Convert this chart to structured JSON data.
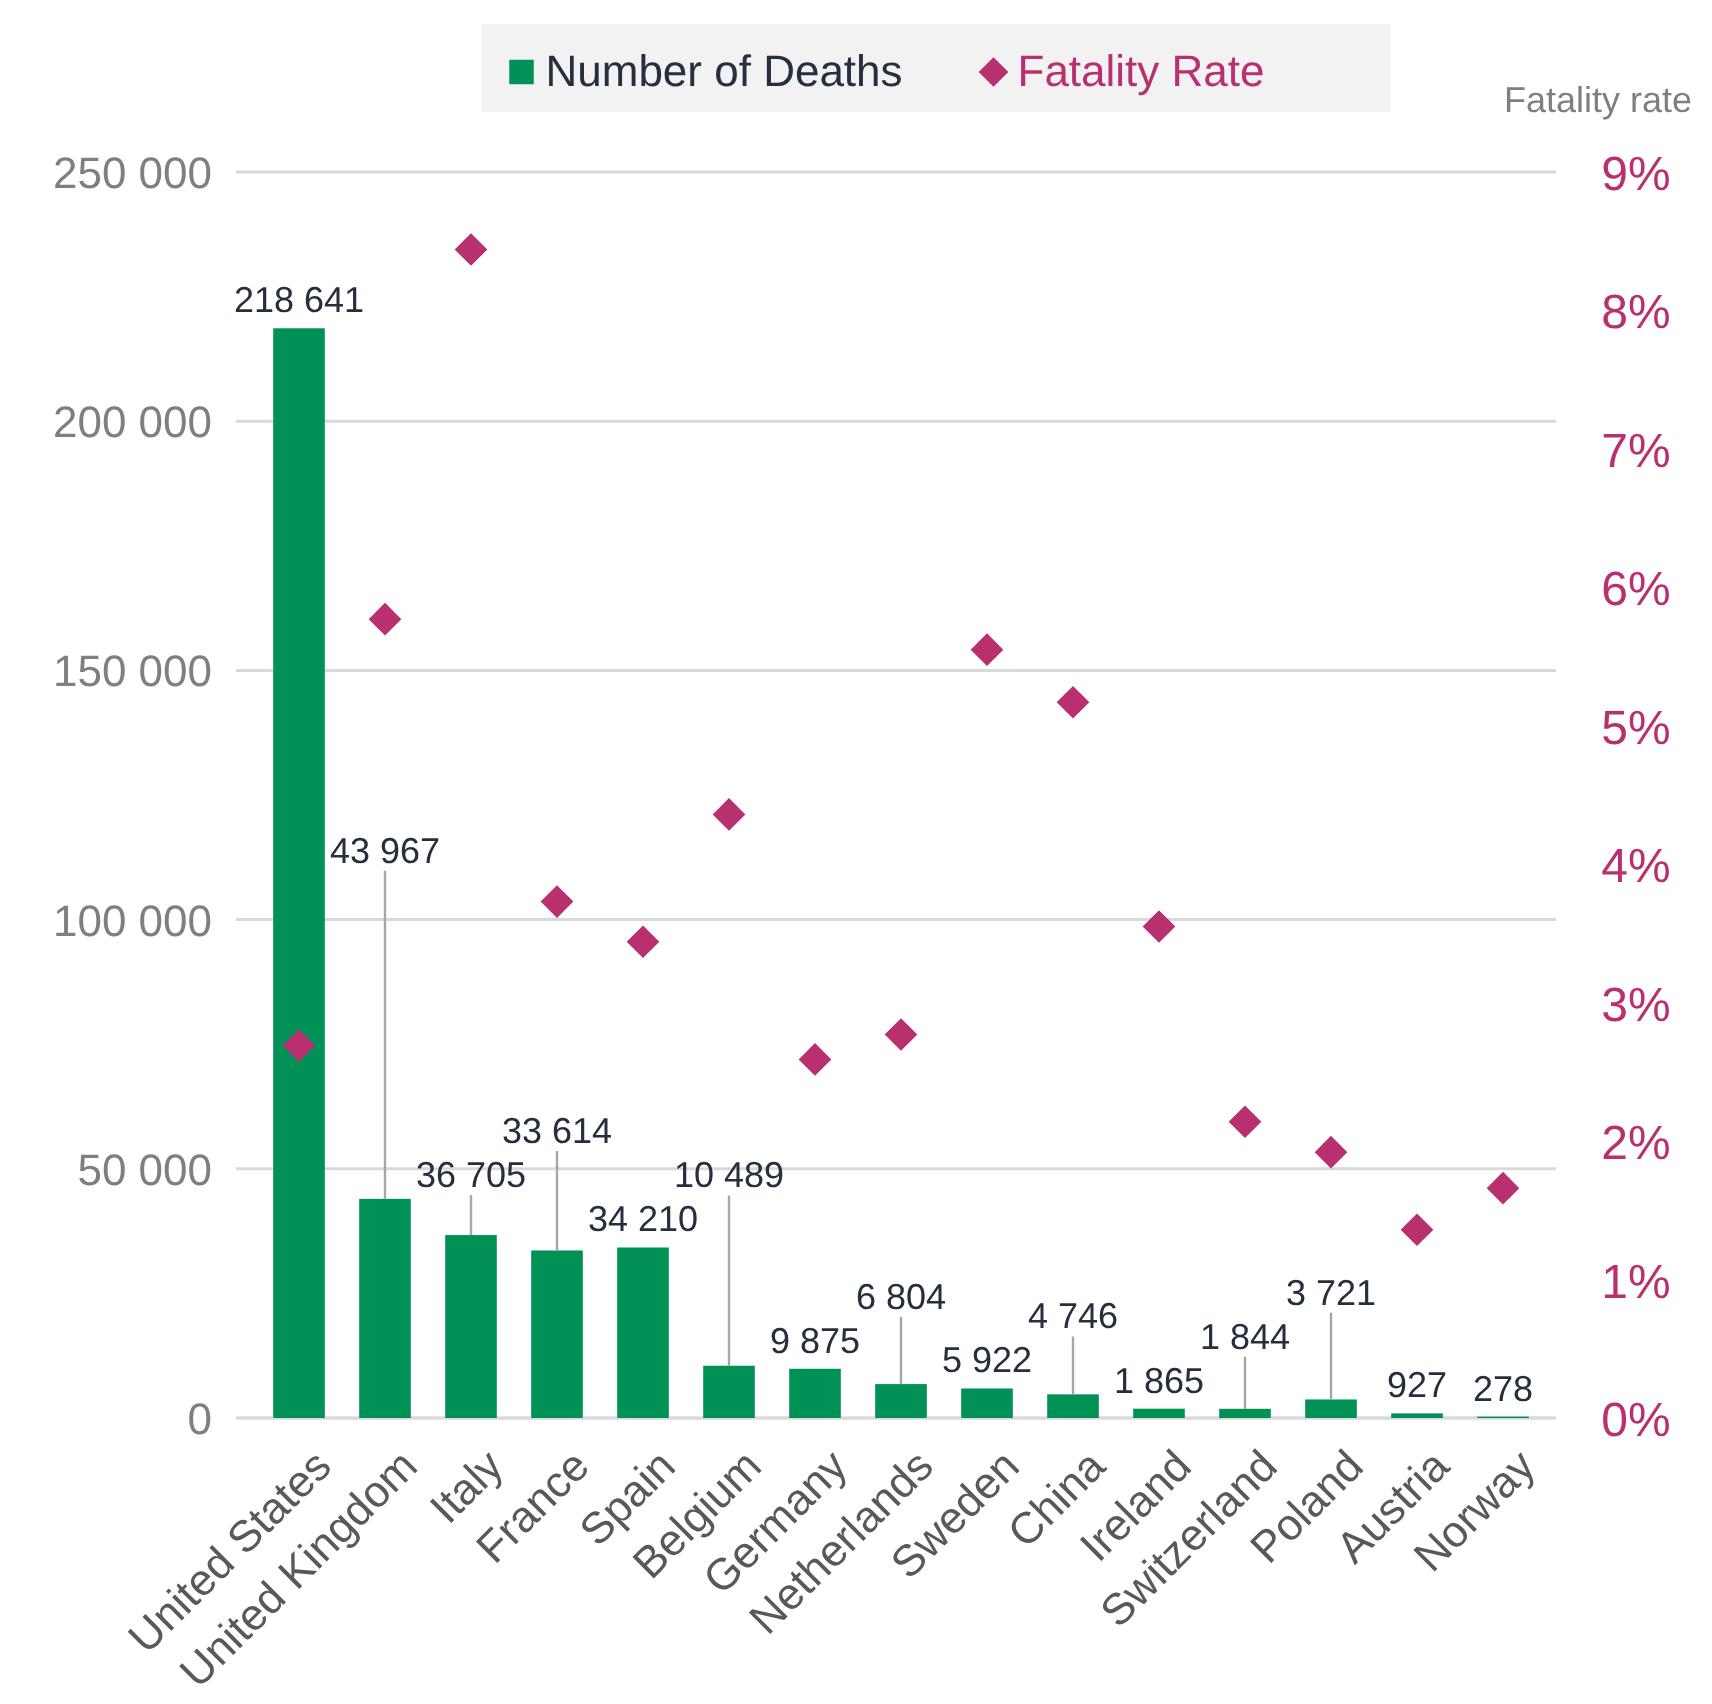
{
  "chart_data": {
    "type": "bar",
    "categories": [
      "United States",
      "United Kingdom",
      "Italy",
      "France",
      "Spain",
      "Belgium",
      "Germany",
      "Netherlands",
      "Sweden",
      "China",
      "Ireland",
      "Switzerland",
      "Poland",
      "Austria",
      "Norway"
    ],
    "series": [
      {
        "name": "Number of Deaths",
        "color": "#009157",
        "values": [
          218641,
          43967,
          36705,
          33614,
          34210,
          10489,
          9875,
          6804,
          5922,
          4746,
          1865,
          1844,
          3721,
          927,
          278
        ],
        "value_labels": [
          "218 641",
          "43 967",
          "36 705",
          "33 614",
          "34 210",
          "10 489",
          "9 875",
          "6 804",
          "5 922",
          "4 746",
          "1 865",
          "1 844",
          "3 721",
          "927",
          "278"
        ]
      },
      {
        "name": "Fatality Rate",
        "type": "scatter",
        "axis": "y2",
        "marker": "diamond",
        "color": "#b8306e",
        "values": [
          2.69,
          5.77,
          8.44,
          3.73,
          3.44,
          4.36,
          2.59,
          2.77,
          5.55,
          5.17,
          3.55,
          2.14,
          1.92,
          1.36,
          1.66
        ]
      }
    ],
    "ylim": [
      0,
      250000
    ],
    "yticks": [
      {
        "value": 0,
        "label": "0"
      },
      {
        "value": 50000,
        "label": "50 000"
      },
      {
        "value": 100000,
        "label": "100 000"
      },
      {
        "value": 150000,
        "label": "150 000"
      },
      {
        "value": 200000,
        "label": "200 000"
      },
      {
        "value": 250000,
        "label": "250 000"
      }
    ],
    "y2lim": [
      0,
      9
    ],
    "y2ticks": [
      {
        "value": 0,
        "label": "0%"
      },
      {
        "value": 1,
        "label": "1%"
      },
      {
        "value": 2,
        "label": "2%"
      },
      {
        "value": 3,
        "label": "3%"
      },
      {
        "value": 4,
        "label": "4%"
      },
      {
        "value": 5,
        "label": "5%"
      },
      {
        "value": 6,
        "label": "6%"
      },
      {
        "value": 7,
        "label": "7%"
      },
      {
        "value": 8,
        "label": "8%"
      },
      {
        "value": 9,
        "label": "9%"
      }
    ],
    "y2label": "Fatality rate",
    "grid": "y",
    "legend": "top"
  }
}
